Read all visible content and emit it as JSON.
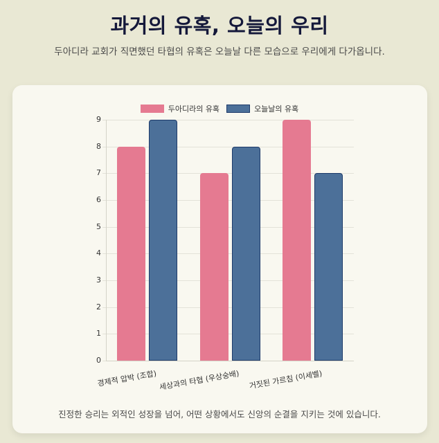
{
  "header": {
    "title": "과거의 유혹, 오늘의 우리",
    "subtitle": "두아디라 교회가 직면했던 타협의 유혹은 오늘날 다른 모습으로 우리에게 다가옵니다."
  },
  "footer": {
    "text": "진정한 승리는 외적인 성장을 넘어, 어떤 상황에서도 신앙의 순결을 지키는 것에 있습니다."
  },
  "colors": {
    "series1": "#e57a91",
    "series2": "#4c7099",
    "series2_border": "#1d3a6a"
  },
  "chart_data": {
    "type": "bar",
    "title": "",
    "categories": [
      "경제적 압박 (조합)",
      "세상과의 타협 (우상숭배)",
      "거짓된 가르침 (이세벨)"
    ],
    "series": [
      {
        "name": "두아디라의 유혹",
        "values": [
          8,
          7,
          9
        ]
      },
      {
        "name": "오늘날의 유혹",
        "values": [
          9,
          8,
          7
        ]
      }
    ],
    "xlabel": "",
    "ylabel": "",
    "ylim": [
      0,
      9
    ],
    "yticks": [
      "0",
      "1",
      "2",
      "3",
      "4",
      "5",
      "6",
      "7",
      "8",
      "9"
    ],
    "grid": true,
    "legend_position": "top"
  }
}
